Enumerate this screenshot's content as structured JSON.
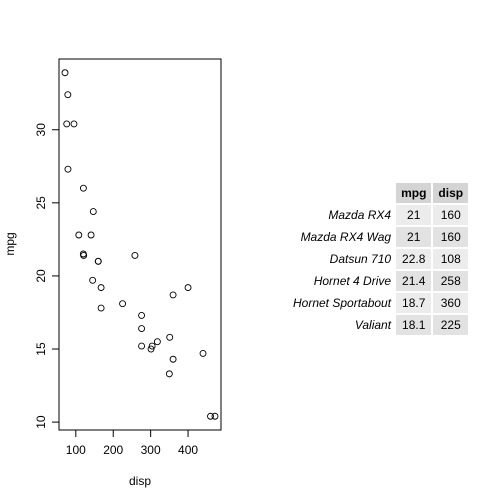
{
  "chart_data": [
    {
      "type": "scatter",
      "title": "",
      "xlabel": "disp",
      "ylabel": "mpg",
      "xlim": [
        71.1,
        472
      ],
      "ylim": [
        10.4,
        33.9
      ],
      "xticks": [
        100,
        200,
        300,
        400
      ],
      "yticks": [
        10,
        15,
        20,
        25,
        30
      ],
      "grid": false,
      "points": [
        {
          "x": 160,
          "y": 21
        },
        {
          "x": 160,
          "y": 21
        },
        {
          "x": 108,
          "y": 22.8
        },
        {
          "x": 258,
          "y": 21.4
        },
        {
          "x": 360,
          "y": 18.7
        },
        {
          "x": 225,
          "y": 18.1
        },
        {
          "x": 360,
          "y": 14.3
        },
        {
          "x": 146.7,
          "y": 24.4
        },
        {
          "x": 140.8,
          "y": 22.8
        },
        {
          "x": 167.6,
          "y": 19.2
        },
        {
          "x": 167.6,
          "y": 17.8
        },
        {
          "x": 275.8,
          "y": 16.4
        },
        {
          "x": 275.8,
          "y": 17.3
        },
        {
          "x": 275.8,
          "y": 15.2
        },
        {
          "x": 472,
          "y": 10.4
        },
        {
          "x": 460,
          "y": 10.4
        },
        {
          "x": 440,
          "y": 14.7
        },
        {
          "x": 78.7,
          "y": 32.4
        },
        {
          "x": 75.7,
          "y": 30.4
        },
        {
          "x": 71.1,
          "y": 33.9
        },
        {
          "x": 120.1,
          "y": 21.5
        },
        {
          "x": 318,
          "y": 15.5
        },
        {
          "x": 304,
          "y": 15.2
        },
        {
          "x": 350,
          "y": 13.3
        },
        {
          "x": 400,
          "y": 19.2
        },
        {
          "x": 79,
          "y": 27.3
        },
        {
          "x": 120.3,
          "y": 26
        },
        {
          "x": 95.1,
          "y": 30.4
        },
        {
          "x": 351,
          "y": 15.8
        },
        {
          "x": 145,
          "y": 19.7
        },
        {
          "x": 301,
          "y": 15
        },
        {
          "x": 121,
          "y": 21.4
        }
      ]
    },
    {
      "type": "table",
      "columns": [
        "mpg",
        "disp"
      ],
      "rows": [
        {
          "name": "Mazda RX4",
          "mpg": "21",
          "disp": "160"
        },
        {
          "name": "Mazda RX4 Wag",
          "mpg": "21",
          "disp": "160"
        },
        {
          "name": "Datsun 710",
          "mpg": "22.8",
          "disp": "108"
        },
        {
          "name": "Hornet 4 Drive",
          "mpg": "21.4",
          "disp": "258"
        },
        {
          "name": "Hornet Sportabout",
          "mpg": "18.7",
          "disp": "360"
        },
        {
          "name": "Valiant",
          "mpg": "18.1",
          "disp": "225"
        }
      ]
    }
  ]
}
